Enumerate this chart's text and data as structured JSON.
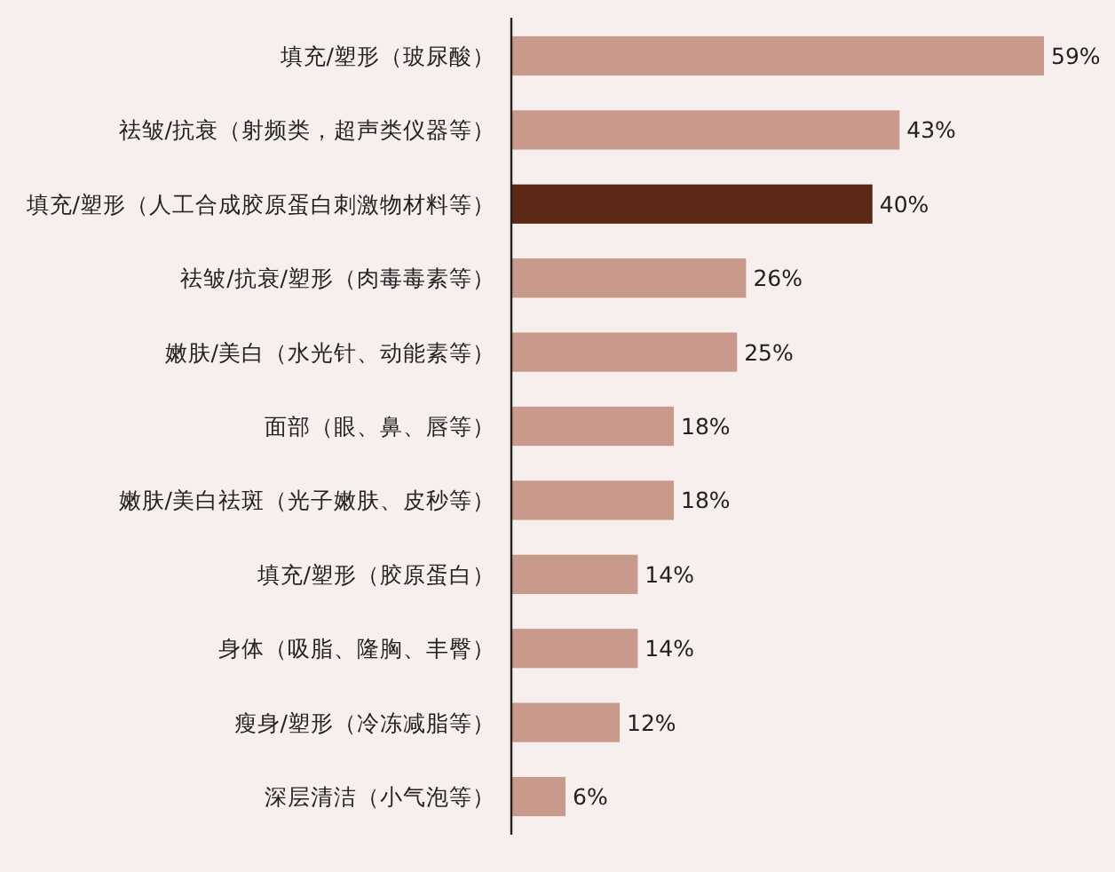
{
  "chart_data": {
    "type": "bar",
    "orientation": "horizontal",
    "categories": [
      "填充/塑形（玻尿酸）",
      "祛皱/抗衰（射频类，超声类仪器等）",
      "填充/塑形（人工合成胶原蛋白刺激物材料等）",
      "祛皱/抗衰/塑形（肉毒毒素等）",
      "嫩肤/美白（水光针、动能素等）",
      "面部（眼、鼻、唇等）",
      "嫩肤/美白祛斑（光子嫩肤、皮秒等）",
      "填充/塑形（胶原蛋白）",
      "身体（吸脂、隆胸、丰臀）",
      "瘦身/塑形（冷冻减脂等）",
      "深层清洁（小气泡等）"
    ],
    "values": [
      59,
      43,
      40,
      26,
      25,
      18,
      18,
      14,
      14,
      12,
      6
    ],
    "value_labels": [
      "59%",
      "43%",
      "40%",
      "26%",
      "25%",
      "18%",
      "18%",
      "14%",
      "14%",
      "12%",
      "6%"
    ],
    "colors": [
      "#c9998b",
      "#c9998b",
      "#5c2916",
      "#c9998b",
      "#c9998b",
      "#c9998b",
      "#c9998b",
      "#c9998b",
      "#c9998b",
      "#c9998b",
      "#c9998b"
    ]
  }
}
